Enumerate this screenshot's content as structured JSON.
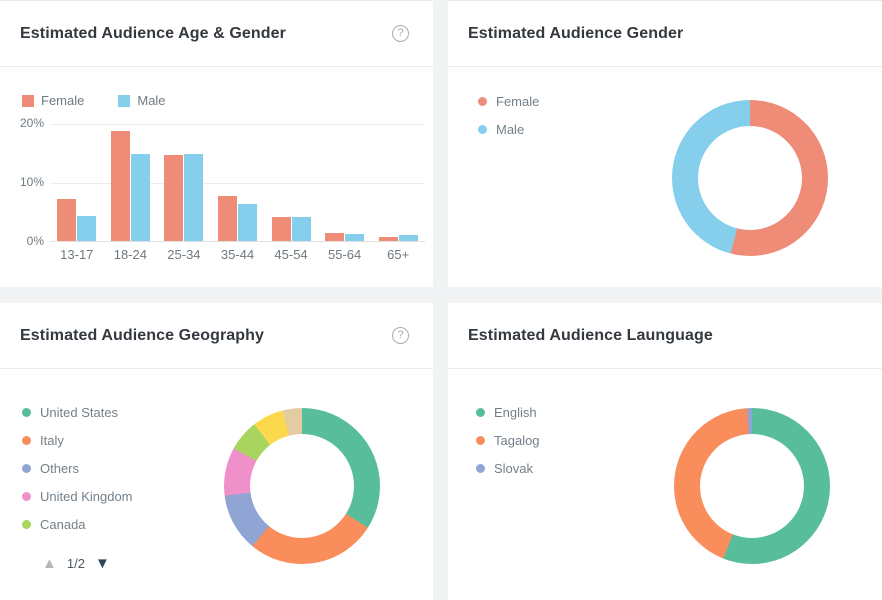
{
  "page": {
    "background": "#F2F3F5"
  },
  "panels": {
    "age_gender": {
      "title": "Estimated Audience Age & Gender",
      "help": "?"
    },
    "gender": {
      "title": "Estimated Audience Gender"
    },
    "geography": {
      "title": "Estimated Audience Geography",
      "help": "?",
      "pagination": {
        "page": "1/2",
        "up": "▲",
        "down": "▼"
      }
    },
    "language": {
      "title": "Estimated Audience Launguage"
    }
  },
  "chart_data": [
    {
      "id": "age_gender",
      "type": "bar",
      "title": "Estimated Audience Age & Gender",
      "categories": [
        "13-17",
        "18-24",
        "25-34",
        "35-44",
        "45-54",
        "55-64",
        "65+"
      ],
      "series": [
        {
          "name": "Female",
          "color": "#EE8C77",
          "values": [
            7.1,
            18.6,
            14.6,
            7.6,
            4.1,
            1.4,
            0.7
          ]
        },
        {
          "name": "Male",
          "color": "#85CEEC",
          "values": [
            4.3,
            14.7,
            14.7,
            6.2,
            4.1,
            1.2,
            1.0
          ]
        }
      ],
      "yticks": [
        "0%",
        "10%",
        "20%"
      ],
      "ylim": [
        0,
        20
      ],
      "unit": "%",
      "grid": true,
      "legend_position": "top-left"
    },
    {
      "id": "gender",
      "type": "donut",
      "title": "Estimated Audience Gender",
      "segments": [
        {
          "label": "Female",
          "color": "#EE8C77",
          "value": 54,
          "in_legend": true
        },
        {
          "label": "Male",
          "color": "#85CEEC",
          "value": 46,
          "in_legend": true
        }
      ],
      "legend_position": "left"
    },
    {
      "id": "geography",
      "type": "donut",
      "title": "Estimated Audience Geography",
      "segments": [
        {
          "label": "United States",
          "color": "#57BD9B",
          "value": 34,
          "in_legend": true
        },
        {
          "label": "Italy",
          "color": "#F98E5C",
          "value": 27,
          "in_legend": true
        },
        {
          "label": "Others",
          "color": "#90A5D3",
          "value": 12,
          "in_legend": true
        },
        {
          "label": "United Kingdom",
          "color": "#EF90CB",
          "value": 10,
          "in_legend": true
        },
        {
          "label": "Canada",
          "color": "#A8D45F",
          "value": 6.5,
          "in_legend": true
        },
        {
          "label": "",
          "color": "#FCD84D",
          "value": 6.5,
          "in_legend": false
        },
        {
          "label": "",
          "color": "#E3CBA2",
          "value": 4,
          "in_legend": false
        }
      ],
      "legend_position": "left",
      "legend_pages": "1/2"
    },
    {
      "id": "language",
      "type": "donut",
      "title": "Estimated Audience Launguage",
      "segments": [
        {
          "label": "English",
          "color": "#57BD9B",
          "value": 56,
          "in_legend": true
        },
        {
          "label": "Tagalog",
          "color": "#F98E5C",
          "value": 43,
          "in_legend": true
        },
        {
          "label": "Slovak",
          "color": "#90A5D3",
          "value": 1,
          "in_legend": true
        }
      ],
      "legend_position": "left"
    }
  ]
}
